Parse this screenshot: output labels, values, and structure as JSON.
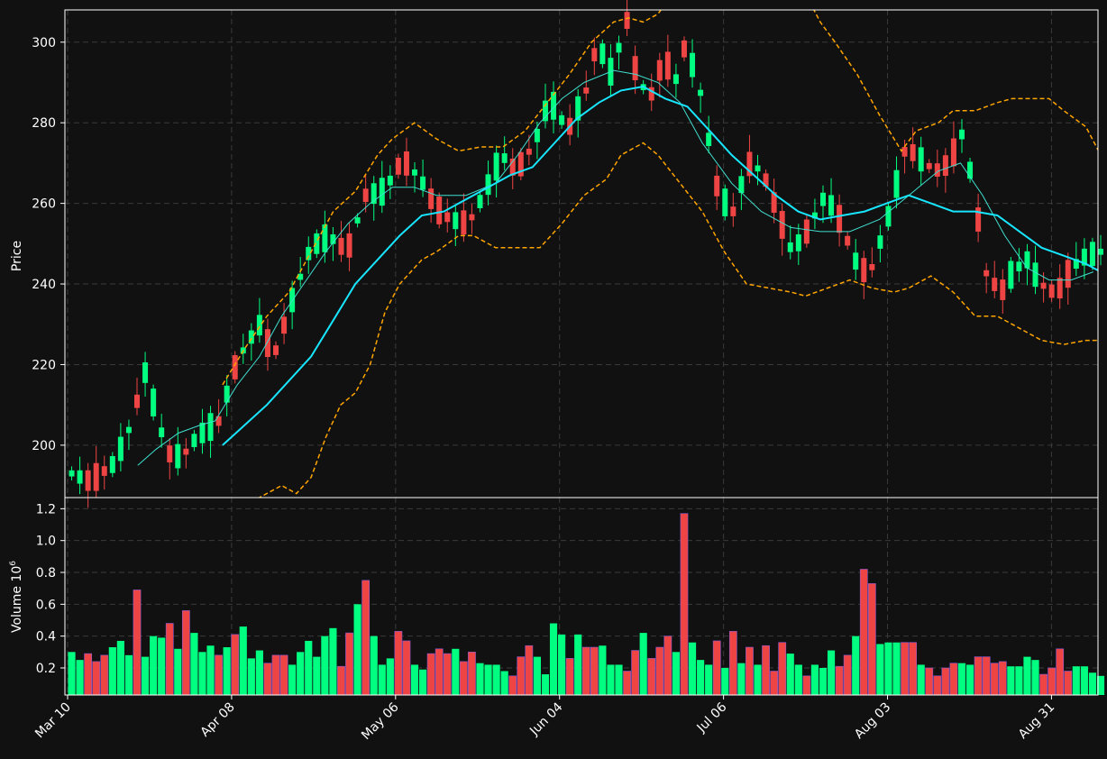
{
  "chart_data": [
    {
      "type": "candlestick",
      "title": "",
      "xlabel": "",
      "ylabel": "Price",
      "ylim": [
        187,
        308
      ],
      "yticks": [
        200,
        220,
        240,
        260,
        280,
        300
      ],
      "grid": true,
      "background": "#111111",
      "up_color": "#00ff80",
      "down_color": "#ef4444",
      "overlays": [
        {
          "kind": "moving-average-short",
          "color": "#40e0d0"
        },
        {
          "kind": "moving-average-long",
          "color": "#18e6ff"
        },
        {
          "kind": "envelope-bands",
          "color": "#ffa500",
          "style": "dashed"
        }
      ],
      "close_path": [
        [
          0,
          193
        ],
        [
          5,
          191
        ],
        [
          11,
          195
        ],
        [
          15,
          202
        ],
        [
          20,
          218
        ],
        [
          26,
          198
        ],
        [
          30,
          197
        ],
        [
          34,
          202
        ],
        [
          40,
          206
        ],
        [
          45,
          221
        ],
        [
          51,
          230
        ],
        [
          55,
          222
        ],
        [
          60,
          236
        ],
        [
          65,
          249
        ],
        [
          70,
          252
        ],
        [
          75,
          248
        ],
        [
          80,
          262
        ],
        [
          85,
          263
        ],
        [
          90,
          271
        ],
        [
          95,
          266
        ],
        [
          99,
          259
        ],
        [
          103,
          256
        ],
        [
          108,
          255
        ],
        [
          112,
          262
        ],
        [
          117,
          272
        ],
        [
          121,
          268
        ],
        [
          126,
          275
        ],
        [
          130,
          286
        ],
        [
          135,
          278
        ],
        [
          140,
          288
        ],
        [
          143,
          300
        ],
        [
          147,
          292
        ],
        [
          151,
          306
        ],
        [
          154,
          290
        ],
        [
          158,
          287
        ],
        [
          161,
          296
        ],
        [
          165,
          290
        ],
        [
          167,
          300
        ],
        [
          171,
          288
        ],
        [
          176,
          262
        ],
        [
          180,
          258
        ],
        [
          184,
          270
        ],
        [
          188,
          268
        ],
        [
          192,
          258
        ],
        [
          196,
          248
        ],
        [
          200,
          253
        ],
        [
          205,
          262
        ],
        [
          209,
          256
        ],
        [
          213,
          246
        ],
        [
          217,
          242
        ],
        [
          222,
          256
        ],
        [
          227,
          274
        ],
        [
          231,
          271
        ],
        [
          235,
          268
        ],
        [
          239,
          270
        ],
        [
          242,
          278
        ],
        [
          245,
          266
        ],
        [
          249,
          242
        ],
        [
          253,
          238
        ],
        [
          256,
          243
        ],
        [
          260,
          246
        ],
        [
          263,
          241
        ],
        [
          266,
          238
        ],
        [
          269,
          239
        ],
        [
          272,
          244
        ],
        [
          276,
          247
        ],
        [
          280,
          248
        ]
      ],
      "ohlc_units": "price",
      "ma_short": [
        [
          19,
          195
        ],
        [
          24,
          199
        ],
        [
          30,
          203
        ],
        [
          36,
          205
        ],
        [
          40,
          206
        ],
        [
          46,
          215
        ],
        [
          52,
          222
        ],
        [
          58,
          232
        ],
        [
          64,
          240
        ],
        [
          70,
          248
        ],
        [
          76,
          255
        ],
        [
          82,
          260
        ],
        [
          88,
          264
        ],
        [
          94,
          264
        ],
        [
          100,
          262
        ],
        [
          108,
          262
        ],
        [
          116,
          265
        ],
        [
          122,
          272
        ],
        [
          128,
          280
        ],
        [
          134,
          286
        ],
        [
          140,
          290
        ],
        [
          148,
          293
        ],
        [
          154,
          292
        ],
        [
          160,
          290
        ],
        [
          166,
          285
        ],
        [
          172,
          275
        ],
        [
          180,
          265
        ],
        [
          188,
          258
        ],
        [
          196,
          254
        ],
        [
          204,
          253
        ],
        [
          212,
          253
        ],
        [
          220,
          256
        ],
        [
          228,
          262
        ],
        [
          236,
          268
        ],
        [
          242,
          270
        ],
        [
          248,
          262
        ],
        [
          254,
          252
        ],
        [
          260,
          244
        ],
        [
          266,
          241
        ],
        [
          272,
          241
        ],
        [
          278,
          243
        ]
      ],
      "ma_long": [
        [
          42,
          200
        ],
        [
          48,
          205
        ],
        [
          54,
          210
        ],
        [
          60,
          216
        ],
        [
          66,
          222
        ],
        [
          72,
          231
        ],
        [
          78,
          240
        ],
        [
          84,
          246
        ],
        [
          90,
          252
        ],
        [
          96,
          257
        ],
        [
          102,
          258
        ],
        [
          108,
          261
        ],
        [
          114,
          264
        ],
        [
          120,
          267
        ],
        [
          126,
          269
        ],
        [
          132,
          275
        ],
        [
          138,
          281
        ],
        [
          144,
          285
        ],
        [
          150,
          288
        ],
        [
          156,
          289
        ],
        [
          162,
          286
        ],
        [
          168,
          284
        ],
        [
          174,
          278
        ],
        [
          180,
          272
        ],
        [
          186,
          267
        ],
        [
          192,
          262
        ],
        [
          198,
          258
        ],
        [
          204,
          256
        ],
        [
          210,
          257
        ],
        [
          216,
          258
        ],
        [
          222,
          260
        ],
        [
          228,
          262
        ],
        [
          234,
          260
        ],
        [
          240,
          258
        ],
        [
          246,
          258
        ],
        [
          252,
          257
        ],
        [
          258,
          253
        ],
        [
          264,
          249
        ],
        [
          270,
          247
        ],
        [
          276,
          245
        ],
        [
          280,
          243
        ]
      ],
      "band_upper": [
        [
          42,
          215
        ],
        [
          48,
          224
        ],
        [
          54,
          232
        ],
        [
          60,
          238
        ],
        [
          66,
          248
        ],
        [
          72,
          258
        ],
        [
          78,
          263
        ],
        [
          84,
          272
        ],
        [
          88,
          276
        ],
        [
          94,
          280
        ],
        [
          100,
          276
        ],
        [
          106,
          273
        ],
        [
          112,
          274
        ],
        [
          118,
          274
        ],
        [
          124,
          278
        ],
        [
          130,
          285
        ],
        [
          136,
          292
        ],
        [
          142,
          300
        ],
        [
          148,
          305
        ],
        [
          152,
          306
        ],
        [
          156,
          305
        ],
        [
          160,
          307
        ],
        [
          164,
          312
        ],
        [
          176,
          312
        ],
        [
          200,
          312
        ],
        [
          204,
          305
        ],
        [
          208,
          300
        ],
        [
          214,
          292
        ],
        [
          220,
          282
        ],
        [
          226,
          273
        ],
        [
          230,
          278
        ],
        [
          236,
          280
        ],
        [
          240,
          283
        ],
        [
          246,
          283
        ],
        [
          252,
          285
        ],
        [
          256,
          286
        ],
        [
          262,
          286
        ],
        [
          266,
          286
        ],
        [
          270,
          283
        ],
        [
          276,
          279
        ],
        [
          280,
          272
        ]
      ],
      "band_lower": [
        [
          48,
          185
        ],
        [
          54,
          188
        ],
        [
          58,
          190
        ],
        [
          62,
          188
        ],
        [
          66,
          192
        ],
        [
          70,
          202
        ],
        [
          74,
          210
        ],
        [
          78,
          213
        ],
        [
          82,
          220
        ],
        [
          86,
          233
        ],
        [
          90,
          240
        ],
        [
          96,
          246
        ],
        [
          100,
          248
        ],
        [
          106,
          252
        ],
        [
          110,
          252
        ],
        [
          116,
          249
        ],
        [
          122,
          249
        ],
        [
          128,
          249
        ],
        [
          134,
          255
        ],
        [
          140,
          262
        ],
        [
          146,
          266
        ],
        [
          150,
          272
        ],
        [
          156,
          275
        ],
        [
          160,
          272
        ],
        [
          166,
          265
        ],
        [
          172,
          258
        ],
        [
          178,
          248
        ],
        [
          184,
          240
        ],
        [
          190,
          239
        ],
        [
          196,
          238
        ],
        [
          200,
          237
        ],
        [
          206,
          239
        ],
        [
          212,
          241
        ],
        [
          218,
          239
        ],
        [
          224,
          238
        ],
        [
          228,
          239
        ],
        [
          234,
          242
        ],
        [
          240,
          238
        ],
        [
          246,
          232
        ],
        [
          252,
          232
        ],
        [
          258,
          229
        ],
        [
          264,
          226
        ],
        [
          270,
          225
        ],
        [
          276,
          226
        ],
        [
          280,
          226
        ]
      ]
    },
    {
      "type": "bar",
      "title": "",
      "xlabel": "",
      "ylabel": "Volume  10",
      "ylabel_exponent": "6",
      "ylim": [
        0.03,
        1.27
      ],
      "yticks": [
        "0.2",
        "0.4",
        "0.6",
        "0.8",
        "1.0",
        "1.2"
      ],
      "yticks_values": [
        0.2,
        0.4,
        0.6,
        0.8,
        1.0,
        1.2
      ],
      "grid": true,
      "values": [
        0.3,
        0.25,
        0.29,
        0.24,
        0.28,
        0.33,
        0.37,
        0.28,
        0.69,
        0.27,
        0.4,
        0.39,
        0.48,
        0.32,
        0.56,
        0.42,
        0.3,
        0.34,
        0.28,
        0.33,
        0.41,
        0.46,
        0.26,
        0.31,
        0.23,
        0.28,
        0.28,
        0.22,
        0.3,
        0.37,
        0.27,
        0.4,
        0.45,
        0.21,
        0.42,
        0.6,
        0.75,
        0.4,
        0.22,
        0.26,
        0.43,
        0.37,
        0.22,
        0.19,
        0.29,
        0.32,
        0.29,
        0.32,
        0.24,
        0.3,
        0.23,
        0.22,
        0.22,
        0.18,
        0.15,
        0.27,
        0.34,
        0.27,
        0.16,
        0.48,
        0.41,
        0.26,
        0.41,
        0.33,
        0.33,
        0.34,
        0.22,
        0.22,
        0.18,
        0.31,
        0.42,
        0.26,
        0.33,
        0.4,
        0.3,
        1.17,
        0.36,
        0.25,
        0.22,
        0.37,
        0.2,
        0.43,
        0.23,
        0.33,
        0.22,
        0.34,
        0.18,
        0.36,
        0.29,
        0.22,
        0.15,
        0.22,
        0.2,
        0.31,
        0.21,
        0.28,
        0.4,
        0.82,
        0.73,
        0.35,
        0.36,
        0.36,
        0.36,
        0.36,
        0.22,
        0.2,
        0.15,
        0.2,
        0.23,
        0.23,
        0.22,
        0.27,
        0.27,
        0.23,
        0.24,
        0.21,
        0.21,
        0.27,
        0.25,
        0.16,
        0.2,
        0.32,
        0.18,
        0.21,
        0.21,
        0.17,
        0.15
      ],
      "up": [
        1,
        1,
        0,
        0,
        0,
        1,
        1,
        1,
        0,
        1,
        1,
        1,
        0,
        1,
        0,
        1,
        1,
        1,
        0,
        1,
        0,
        1,
        1,
        1,
        0,
        0,
        0,
        1,
        1,
        1,
        1,
        1,
        1,
        0,
        0,
        1,
        0,
        1,
        1,
        1,
        0,
        0,
        1,
        1,
        0,
        0,
        0,
        1,
        0,
        0,
        1,
        1,
        1,
        1,
        0,
        0,
        0,
        1,
        1,
        1,
        1,
        0,
        1,
        0,
        0,
        1,
        1,
        1,
        0,
        0,
        1,
        0,
        0,
        0,
        1,
        0,
        1,
        1,
        1,
        0,
        1,
        0,
        1,
        0,
        1,
        0,
        0,
        0,
        1,
        1,
        0,
        1,
        1,
        1,
        0,
        0,
        1,
        0,
        0,
        1,
        1,
        1,
        0,
        0,
        1,
        0,
        0,
        0,
        0,
        1,
        1,
        0,
        0,
        0,
        0,
        1,
        1,
        1,
        1,
        0,
        0,
        0,
        0,
        1,
        1,
        1,
        1
      ]
    }
  ],
  "x_axis": {
    "ticks": [
      "Mar 10",
      "Apr 08",
      "May 06",
      "Jun 04",
      "Jul 06",
      "Aug 03",
      "Aug 31"
    ],
    "tick_index": [
      0,
      40,
      80,
      120,
      160,
      200,
      240
    ],
    "n_days": 252
  }
}
